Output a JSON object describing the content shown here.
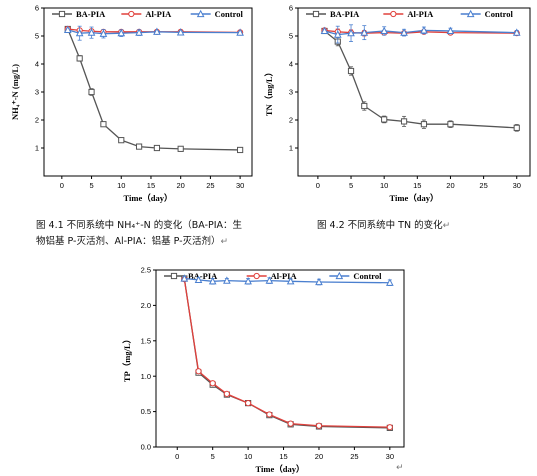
{
  "colors": {
    "ba": "#555555",
    "al": "#e0403c",
    "control": "#4a7fcf"
  },
  "captions": {
    "fig1_line1": "图 4.1 不同系统中 NH₄⁺-N 的变化（BA-PIA：生",
    "fig1_line2": "物铝基 P-灭活剂、Al-PIA：铝基 P-灭活剂）",
    "fig2": "图 4.2 不同系统中 TN 的变化",
    "return_mark": "↵"
  },
  "chart_data": [
    {
      "type": "line",
      "xlabel": "Time（day）",
      "ylabel": "NH₄⁺-N (mg/L)",
      "xlim": [
        -3,
        32
      ],
      "ylim": [
        0,
        6
      ],
      "xticks": [
        0,
        5,
        10,
        15,
        20,
        25,
        30
      ],
      "yticks": [
        1,
        2,
        3,
        4,
        5,
        6
      ],
      "legend": "top",
      "grid": false,
      "series": [
        {
          "name": "BA-PIA",
          "marker": "square",
          "x": [
            1,
            3,
            5,
            7,
            10,
            13,
            16,
            20,
            30
          ],
          "y": [
            5.25,
            4.2,
            3.0,
            1.85,
            1.28,
            1.05,
            1.0,
            0.97,
            0.93
          ],
          "err": [
            0.05,
            0.1,
            0.12,
            0.05,
            0.08,
            0.04,
            0.04,
            0.04,
            0.03
          ]
        },
        {
          "name": "Al-PIA",
          "marker": "circle",
          "x": [
            1,
            3,
            5,
            7,
            10,
            13,
            16,
            20,
            30
          ],
          "y": [
            5.25,
            5.2,
            5.17,
            5.15,
            5.15,
            5.15,
            5.15,
            5.15,
            5.13
          ],
          "err": [
            0.04,
            0.05,
            0.06,
            0.05,
            0.05,
            0.04,
            0.04,
            0.04,
            0.04
          ]
        },
        {
          "name": "Control",
          "marker": "triangle",
          "x": [
            1,
            3,
            5,
            7,
            10,
            13,
            16,
            20,
            30
          ],
          "y": [
            5.22,
            5.1,
            5.12,
            5.08,
            5.1,
            5.12,
            5.15,
            5.13,
            5.12
          ],
          "err": [
            0.04,
            0.25,
            0.2,
            0.15,
            0.12,
            0.1,
            0.05,
            0.05,
            0.05
          ]
        }
      ]
    },
    {
      "type": "line",
      "xlabel": "Time（day）",
      "ylabel": "TN（mg/L）",
      "xlim": [
        -3,
        32
      ],
      "ylim": [
        0,
        6
      ],
      "xticks": [
        0,
        5,
        10,
        15,
        20,
        25,
        30
      ],
      "yticks": [
        1,
        2,
        3,
        4,
        5,
        6
      ],
      "legend": "top",
      "grid": false,
      "series": [
        {
          "name": "BA-PIA",
          "marker": "square",
          "x": [
            1,
            3,
            5,
            7,
            10,
            13,
            16,
            20,
            30
          ],
          "y": [
            5.18,
            4.8,
            3.75,
            2.5,
            2.02,
            1.95,
            1.85,
            1.85,
            1.72
          ],
          "err": [
            0.05,
            0.15,
            0.15,
            0.15,
            0.12,
            0.18,
            0.15,
            0.12,
            0.12
          ]
        },
        {
          "name": "Al-PIA",
          "marker": "circle",
          "x": [
            1,
            3,
            5,
            7,
            10,
            13,
            16,
            20,
            30
          ],
          "y": [
            5.2,
            5.15,
            5.12,
            5.1,
            5.12,
            5.1,
            5.15,
            5.12,
            5.1
          ],
          "err": [
            0.05,
            0.1,
            0.1,
            0.1,
            0.08,
            0.08,
            0.08,
            0.05,
            0.05
          ]
        },
        {
          "name": "Control",
          "marker": "triangle",
          "x": [
            1,
            3,
            5,
            7,
            10,
            13,
            16,
            20,
            30
          ],
          "y": [
            5.18,
            5.05,
            5.1,
            5.12,
            5.18,
            5.12,
            5.2,
            5.18,
            5.12
          ],
          "err": [
            0.05,
            0.3,
            0.3,
            0.25,
            0.15,
            0.12,
            0.12,
            0.1,
            0.08
          ]
        }
      ]
    },
    {
      "type": "line",
      "xlabel": "Time（day）",
      "ylabel": "TP（mg/L）",
      "xlim": [
        -3,
        32
      ],
      "ylim": [
        0,
        2.5
      ],
      "xticks": [
        0,
        5,
        10,
        15,
        20,
        25,
        30
      ],
      "yticks": [
        0.0,
        0.5,
        1.0,
        1.5,
        2.0,
        2.5
      ],
      "ytick_labels": [
        "0.0",
        "0.5",
        "1.0",
        "1.5",
        "2.0",
        "2.5"
      ],
      "legend": "top",
      "grid": false,
      "series": [
        {
          "name": "BA-PIA",
          "marker": "square",
          "x": [
            1,
            3,
            5,
            7,
            10,
            13,
            16,
            20,
            30
          ],
          "y": [
            2.38,
            1.05,
            0.88,
            0.74,
            0.62,
            0.45,
            0.32,
            0.29,
            0.27
          ],
          "err": [
            0.02,
            0.03,
            0.03,
            0.02,
            0.02,
            0.02,
            0.02,
            0.02,
            0.02
          ]
        },
        {
          "name": "Al-PIA",
          "marker": "circle",
          "x": [
            1,
            3,
            5,
            7,
            10,
            13,
            16,
            20,
            30
          ],
          "y": [
            2.37,
            1.07,
            0.9,
            0.75,
            0.62,
            0.46,
            0.33,
            0.3,
            0.28
          ],
          "err": [
            0.02,
            0.03,
            0.03,
            0.02,
            0.02,
            0.02,
            0.02,
            0.02,
            0.02
          ]
        },
        {
          "name": "Control",
          "marker": "triangle",
          "x": [
            1,
            3,
            5,
            7,
            10,
            13,
            16,
            20,
            30
          ],
          "y": [
            2.38,
            2.36,
            2.34,
            2.35,
            2.34,
            2.35,
            2.34,
            2.33,
            2.32
          ],
          "err": [
            0.03,
            0.03,
            0.04,
            0.03,
            0.04,
            0.04,
            0.03,
            0.04,
            0.04
          ]
        }
      ]
    }
  ]
}
